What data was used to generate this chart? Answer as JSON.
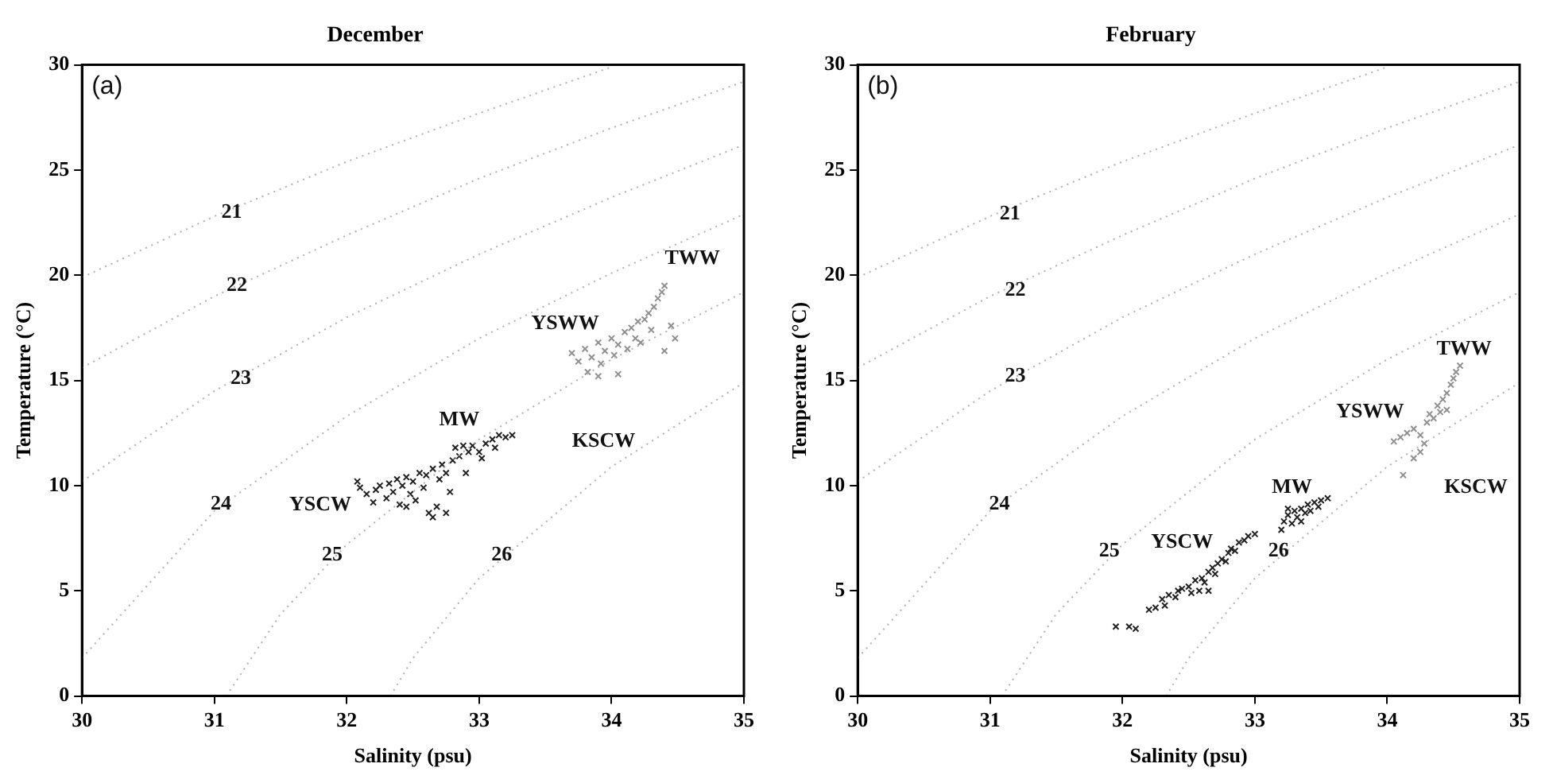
{
  "chart_data": [
    {
      "type": "scatter",
      "title": "December",
      "xlabel": "Salinity (psu)",
      "ylabel": "Temperature (°C)",
      "xlim": [
        30,
        35
      ],
      "xticks": [
        30,
        31,
        32,
        33,
        34,
        35
      ],
      "ylim": [
        0,
        30
      ],
      "yticks": [
        0,
        5,
        10,
        15,
        20,
        25,
        30
      ],
      "grid": false,
      "legend": false,
      "marker": "cross",
      "series": [
        {
          "type": "line",
          "color": "#b0b0b0",
          "marker": "none",
          "line_style": "dotted",
          "x": [
            30,
            31,
            32,
            33,
            34
          ],
          "values": [
            19.9,
            22.8,
            25.4,
            27.7,
            29.9
          ]
        },
        {
          "type": "line",
          "color": "#b0b0b0",
          "marker": "none",
          "line_style": "dotted",
          "x": [
            30,
            31,
            32,
            33,
            34,
            35
          ],
          "values": [
            15.6,
            19.0,
            21.9,
            24.6,
            27.0,
            29.2
          ]
        },
        {
          "type": "line",
          "color": "#b0b0b0",
          "marker": "none",
          "line_style": "dotted",
          "x": [
            30,
            31,
            32,
            33,
            34,
            35
          ],
          "values": [
            10.2,
            14.5,
            18.0,
            21.0,
            23.7,
            26.2
          ]
        },
        {
          "type": "line",
          "color": "#b0b0b0",
          "marker": "none",
          "line_style": "dotted",
          "x": [
            30,
            31,
            32,
            33,
            34,
            35
          ],
          "values": [
            1.8,
            8.8,
            13.3,
            17.0,
            20.1,
            22.9
          ]
        },
        {
          "type": "line",
          "color": "#b0b0b0",
          "marker": "none",
          "line_style": "dotted",
          "x": [
            31.09,
            31.5,
            32,
            33,
            34,
            35
          ],
          "values": [
            0,
            3.9,
            7.2,
            12.2,
            16.0,
            19.2
          ]
        },
        {
          "type": "line",
          "color": "#b0b0b0",
          "marker": "none",
          "line_style": "dotted",
          "x": [
            32.33,
            32.5,
            33,
            34,
            35
          ],
          "values": [
            0,
            1.8,
            5.6,
            10.9,
            14.9
          ]
        },
        {
          "color": "#222222",
          "x": [
            32.08,
            32.1,
            32.15,
            32.2,
            32.22,
            32.25,
            32.3,
            32.32,
            32.35,
            32.38,
            32.4,
            32.42,
            32.45,
            32.48,
            32.5,
            32.52,
            32.55,
            32.58,
            32.6,
            32.62,
            32.65,
            32.68,
            32.7,
            32.72,
            32.75,
            32.78,
            32.8,
            32.82,
            32.85,
            32.88,
            32.9,
            32.92,
            32.95,
            33.0,
            33.02,
            33.05,
            33.1,
            33.12,
            33.15,
            33.2,
            33.25,
            32.65,
            32.75,
            32.45
          ],
          "values": [
            10.2,
            9.9,
            9.6,
            9.2,
            9.8,
            10.0,
            9.4,
            10.1,
            9.7,
            10.3,
            9.1,
            10.0,
            10.4,
            9.6,
            10.2,
            9.3,
            10.6,
            9.9,
            10.5,
            8.7,
            10.8,
            9.0,
            10.3,
            11.0,
            10.6,
            9.7,
            11.2,
            11.8,
            11.4,
            11.9,
            10.6,
            11.6,
            11.9,
            11.6,
            11.3,
            12.0,
            12.2,
            11.8,
            12.4,
            12.3,
            12.4,
            8.5,
            8.7,
            9.0
          ]
        },
        {
          "color": "#909090",
          "x": [
            33.7,
            33.75,
            33.8,
            33.82,
            33.85,
            33.9,
            33.92,
            33.95,
            34.0,
            34.02,
            34.05,
            34.1,
            34.12,
            34.15,
            34.18,
            34.2,
            34.22,
            34.25,
            34.28,
            34.3,
            34.32,
            34.35,
            34.38,
            34.4,
            34.45,
            34.48,
            34.4,
            33.9,
            34.05
          ],
          "values": [
            16.3,
            15.9,
            16.5,
            15.4,
            16.1,
            16.8,
            15.8,
            16.4,
            17.0,
            16.2,
            16.7,
            17.3,
            16.5,
            17.5,
            17.0,
            17.8,
            16.8,
            17.9,
            18.2,
            17.4,
            18.5,
            18.9,
            19.2,
            19.5,
            17.6,
            17.0,
            16.4,
            15.2,
            15.3
          ]
        }
      ],
      "annotations": [
        "(a)",
        {
          "text": "21",
          "x": 31.13,
          "y": 23.0
        },
        {
          "text": "22",
          "x": 31.17,
          "y": 19.5
        },
        {
          "text": "23",
          "x": 31.2,
          "y": 15.1
        },
        {
          "text": "24",
          "x": 31.05,
          "y": 9.1
        },
        {
          "text": "25",
          "x": 31.89,
          "y": 6.7
        },
        {
          "text": "26",
          "x": 33.17,
          "y": 6.7
        },
        "TWW",
        "YSWW",
        "MW",
        "KSCW",
        "YSCW"
      ]
    },
    {
      "type": "scatter",
      "title": "February",
      "xlabel": "Salinity (psu)",
      "ylabel": "Temperature (°C)",
      "xlim": [
        30,
        35
      ],
      "xticks": [
        30,
        31,
        32,
        33,
        34,
        35
      ],
      "ylim": [
        0,
        30
      ],
      "yticks": [
        0,
        5,
        10,
        15,
        20,
        25,
        30
      ],
      "grid": false,
      "legend": false,
      "marker": "cross",
      "series": [
        {
          "type": "line",
          "color": "#b0b0b0",
          "marker": "none",
          "line_style": "dotted",
          "x": [
            30,
            31,
            32,
            33,
            34
          ],
          "values": [
            19.9,
            22.8,
            25.4,
            27.7,
            29.9
          ]
        },
        {
          "type": "line",
          "color": "#b0b0b0",
          "marker": "none",
          "line_style": "dotted",
          "x": [
            30,
            31,
            32,
            33,
            34,
            35
          ],
          "values": [
            15.6,
            19.0,
            21.9,
            24.6,
            27.0,
            29.2
          ]
        },
        {
          "type": "line",
          "color": "#b0b0b0",
          "marker": "none",
          "line_style": "dotted",
          "x": [
            30,
            31,
            32,
            33,
            34,
            35
          ],
          "values": [
            10.2,
            14.5,
            18.0,
            21.0,
            23.7,
            26.2
          ]
        },
        {
          "type": "line",
          "color": "#b0b0b0",
          "marker": "none",
          "line_style": "dotted",
          "x": [
            30,
            31,
            32,
            33,
            34,
            35
          ],
          "values": [
            1.8,
            8.8,
            13.3,
            17.0,
            20.1,
            22.9
          ]
        },
        {
          "type": "line",
          "color": "#b0b0b0",
          "marker": "none",
          "line_style": "dotted",
          "x": [
            31.09,
            31.5,
            32,
            33,
            34,
            35
          ],
          "values": [
            0,
            3.9,
            7.2,
            12.2,
            16.0,
            19.2
          ]
        },
        {
          "type": "line",
          "color": "#b0b0b0",
          "marker": "none",
          "line_style": "dotted",
          "x": [
            32.33,
            32.5,
            33,
            34,
            35
          ],
          "values": [
            0,
            1.8,
            5.6,
            10.9,
            14.9
          ]
        },
        {
          "color": "#222222",
          "x": [
            31.95,
            32.05,
            32.1,
            32.2,
            32.25,
            32.3,
            32.32,
            32.35,
            32.4,
            32.42,
            32.45,
            32.5,
            32.52,
            32.55,
            32.6,
            32.62,
            32.65,
            32.68,
            32.7,
            32.72,
            32.75,
            32.78,
            32.8,
            32.82,
            32.85,
            32.88,
            32.92,
            32.95,
            33.0,
            32.65,
            32.58,
            33.2,
            33.22,
            33.25,
            33.28,
            33.3,
            33.32,
            33.35,
            33.38,
            33.4,
            33.42,
            33.45,
            33.48,
            33.5,
            33.55,
            33.25,
            33.35
          ],
          "values": [
            3.3,
            3.3,
            3.2,
            4.1,
            4.2,
            4.6,
            4.3,
            4.8,
            4.7,
            5.0,
            5.1,
            5.2,
            4.9,
            5.5,
            5.6,
            5.4,
            5.9,
            6.1,
            5.8,
            6.3,
            6.5,
            6.4,
            6.8,
            7.0,
            6.9,
            7.3,
            7.4,
            7.6,
            7.7,
            5.0,
            5.0,
            7.9,
            8.3,
            8.6,
            8.2,
            8.8,
            8.5,
            8.9,
            8.7,
            9.1,
            8.8,
            9.2,
            9.0,
            9.3,
            9.4,
            8.9,
            8.3
          ]
        },
        {
          "color": "#909090",
          "x": [
            34.05,
            34.1,
            34.15,
            34.2,
            34.25,
            34.25,
            34.28,
            34.3,
            34.32,
            34.35,
            34.38,
            34.4,
            34.42,
            34.45,
            34.48,
            34.5,
            34.52,
            34.55,
            34.45,
            34.2,
            34.12
          ],
          "values": [
            12.1,
            12.3,
            12.5,
            12.7,
            12.4,
            11.6,
            12.0,
            13.0,
            13.4,
            13.2,
            13.8,
            13.5,
            14.1,
            14.4,
            14.8,
            15.1,
            15.4,
            15.7,
            13.6,
            11.3,
            10.5
          ]
        }
      ],
      "annotations": [
        "(b)",
        {
          "text": "21",
          "x": 31.15,
          "y": 22.9
        },
        {
          "text": "22",
          "x": 31.19,
          "y": 19.3
        },
        {
          "text": "23",
          "x": 31.19,
          "y": 15.2
        },
        {
          "text": "24",
          "x": 31.07,
          "y": 9.1
        },
        {
          "text": "25",
          "x": 31.9,
          "y": 6.9
        },
        {
          "text": "26",
          "x": 33.18,
          "y": 6.9
        },
        "TWW",
        "YSWW",
        "MW",
        "KSCW",
        "YSCW"
      ]
    }
  ]
}
